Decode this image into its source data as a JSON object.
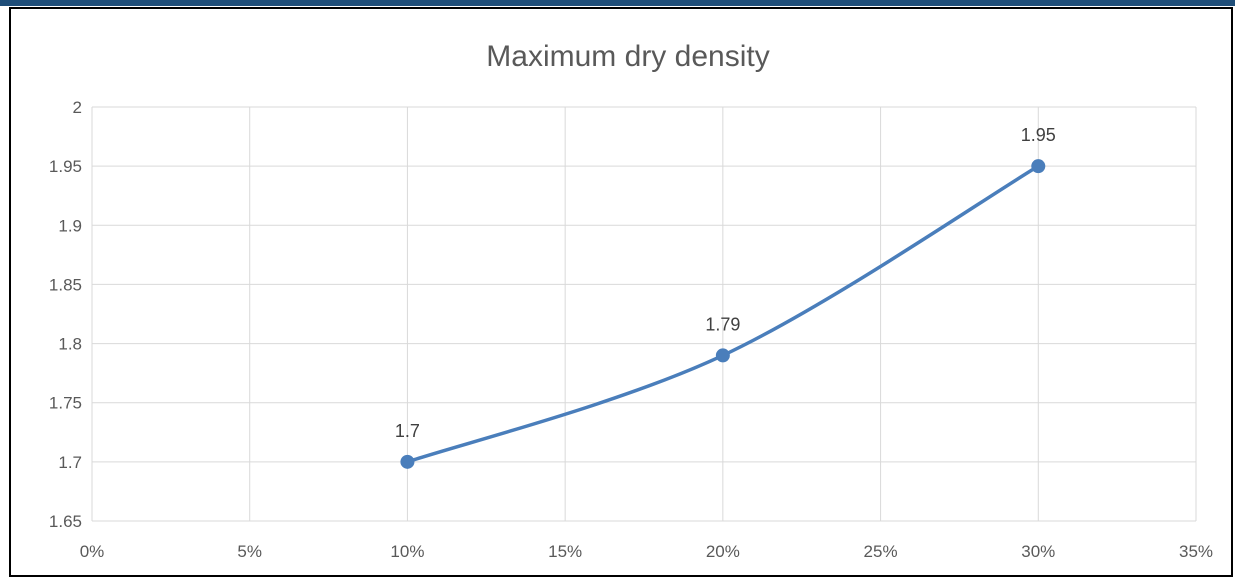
{
  "chart_data": {
    "type": "line",
    "title": "Maximum dry density",
    "xlabel": "",
    "ylabel": "",
    "x": [
      0.1,
      0.2,
      0.3
    ],
    "series": [
      {
        "values": [
          1.7,
          1.79,
          1.95
        ],
        "data_labels": [
          "1.7",
          "1.79",
          "1.95"
        ],
        "color": "#4a7ebb",
        "smooth": true,
        "markers": true
      }
    ],
    "xlim": [
      0,
      0.35
    ],
    "ylim": [
      1.65,
      2.0
    ],
    "x_ticks": [
      0,
      0.05,
      0.1,
      0.15,
      0.2,
      0.25,
      0.3,
      0.35
    ],
    "x_tick_labels": [
      "0%",
      "5%",
      "10%",
      "15%",
      "20%",
      "25%",
      "30%",
      "35%"
    ],
    "y_ticks": [
      1.65,
      1.7,
      1.75,
      1.8,
      1.85,
      1.9,
      1.95,
      2.0
    ],
    "y_tick_labels": [
      "1.65",
      "1.7",
      "1.75",
      "1.8",
      "1.85",
      "1.9",
      "1.95",
      "2"
    ],
    "grid": true,
    "legend": "none",
    "colors": {
      "line": "#4a7ebb",
      "grid": "#d9d9d9",
      "text": "#595959",
      "title": "#595959",
      "frame": "#000000",
      "banner": "#1f4e79"
    }
  }
}
